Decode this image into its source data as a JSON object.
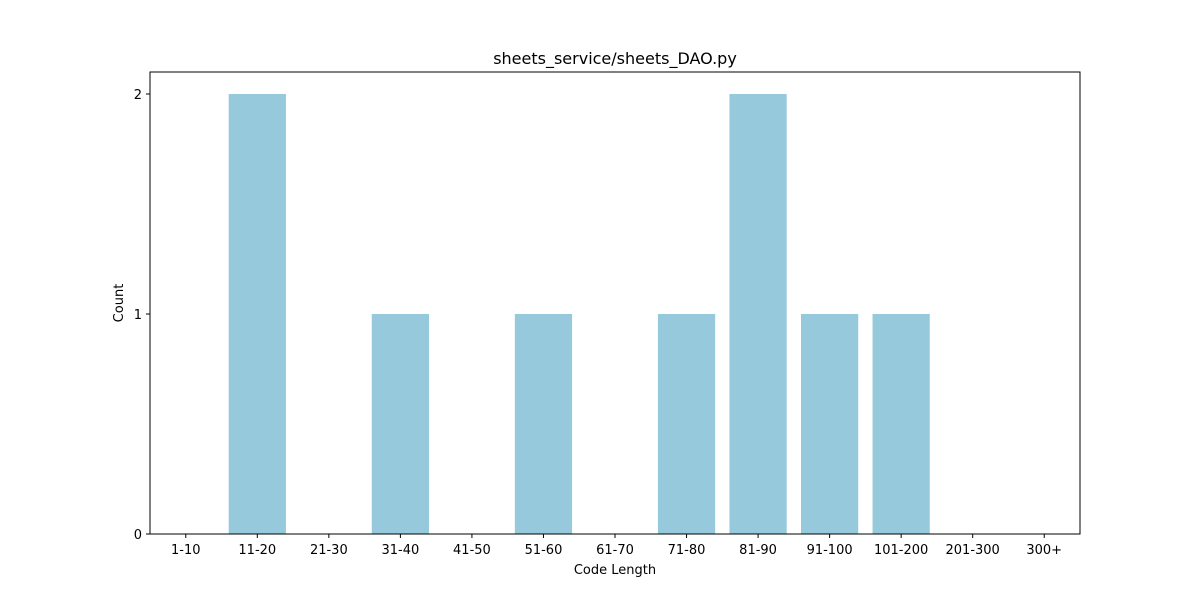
{
  "chart_data": {
    "type": "bar",
    "title": "sheets_service/sheets_DAO.py",
    "xlabel": "Code Length",
    "ylabel": "Count",
    "categories": [
      "1-10",
      "11-20",
      "21-30",
      "31-40",
      "41-50",
      "51-60",
      "61-70",
      "71-80",
      "81-90",
      "91-100",
      "101-200",
      "201-300",
      "300+"
    ],
    "values": [
      0,
      2,
      0,
      1,
      0,
      1,
      0,
      1,
      2,
      1,
      1,
      0,
      0
    ],
    "ylim": [
      0,
      2.1
    ],
    "yticks": [
      0,
      1,
      2
    ],
    "grid": false,
    "legend": "none",
    "bar_color": "#96c9dc"
  }
}
